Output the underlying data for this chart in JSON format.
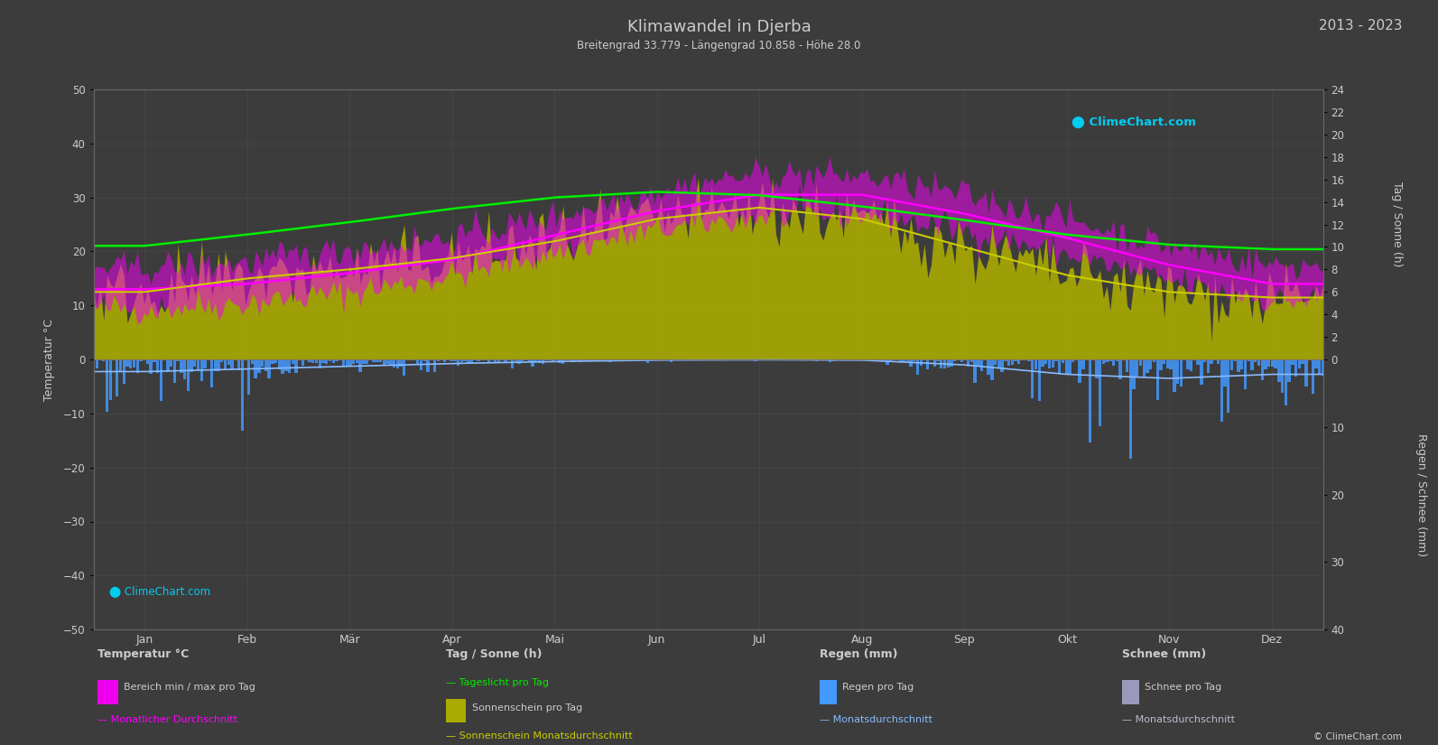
{
  "title": "Klimawandel in Djerba",
  "subtitle": "Breitengrad 33.779 - Längengrad 10.858 - Höhe 28.0",
  "year_range": "2013 - 2023",
  "background_color": "#3c3c3c",
  "plot_bg_color": "#3c3c3c",
  "grid_color": "#555555",
  "text_color": "#cccccc",
  "months": [
    "Jan",
    "Feb",
    "Mär",
    "Apr",
    "Mai",
    "Jun",
    "Jul",
    "Aug",
    "Sep",
    "Okt",
    "Nov",
    "Dez"
  ],
  "temp_ylim": [
    -50,
    50
  ],
  "temp_avg": [
    13.0,
    14.0,
    16.0,
    18.5,
    23.0,
    27.5,
    30.5,
    30.5,
    27.0,
    22.5,
    17.5,
    14.0
  ],
  "temp_min_avg": [
    9.5,
    10.5,
    12.5,
    15.5,
    20.0,
    24.0,
    26.5,
    27.0,
    24.0,
    19.5,
    14.5,
    11.0
  ],
  "temp_max_avg": [
    17.0,
    18.0,
    20.5,
    22.5,
    26.5,
    31.5,
    34.5,
    34.0,
    30.5,
    26.0,
    21.0,
    17.5
  ],
  "daylight_hours": [
    10.1,
    11.1,
    12.2,
    13.4,
    14.4,
    14.9,
    14.6,
    13.6,
    12.4,
    11.1,
    10.2,
    9.8
  ],
  "sunshine_hours": [
    6.0,
    7.2,
    8.0,
    9.0,
    10.5,
    12.5,
    13.5,
    12.5,
    10.0,
    7.5,
    6.0,
    5.5
  ],
  "sunshine_avg": [
    6.0,
    7.2,
    8.0,
    9.0,
    10.5,
    12.5,
    13.5,
    12.5,
    10.0,
    7.5,
    6.0,
    5.5
  ],
  "rain_daily_avg": [
    1.8,
    1.4,
    1.0,
    0.6,
    0.3,
    0.1,
    0.05,
    0.1,
    0.8,
    2.2,
    2.8,
    2.2
  ],
  "color_temp_fill": "#ee00ee",
  "color_temp_avg_line": "#ff00ff",
  "color_daylight": "#00ee00",
  "color_sunshine_fill": "#aaaa00",
  "color_sunshine_avg": "#cccc00",
  "color_rain_bar": "#4499ff",
  "color_rain_avg": "#88bbff",
  "color_snow_bar": "#9999bb",
  "color_snow_avg": "#bbbbcc",
  "sun_scale": 2.083,
  "rain_scale": 1.25,
  "right_top_label": "Tag / Sonne (h)",
  "right_bottom_label": "Regen / Schnee (mm)"
}
